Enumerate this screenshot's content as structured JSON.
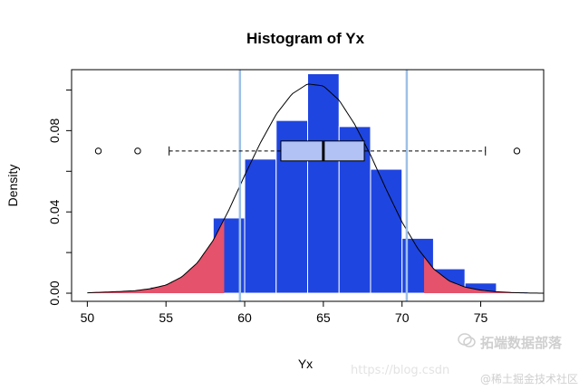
{
  "chart_data": {
    "type": "histogram",
    "title": "Histogram of Yx",
    "xlabel": "Yx",
    "ylabel": "Density",
    "xlim": [
      49,
      79
    ],
    "ylim": [
      -0.004,
      0.11
    ],
    "x_ticks": [
      50,
      55,
      60,
      65,
      70,
      75
    ],
    "y_ticks": [
      0.0,
      0.04,
      0.08
    ],
    "y_tick_labels": [
      "0.00",
      "0.04",
      "0.08"
    ],
    "bins": [
      {
        "x0": 52,
        "x1": 54,
        "density": 0.0002
      },
      {
        "x0": 54,
        "x1": 56,
        "density": 0.003
      },
      {
        "x0": 56,
        "x1": 58,
        "density": 0.008
      },
      {
        "x0": 58,
        "x1": 60,
        "density": 0.037
      },
      {
        "x0": 60,
        "x1": 62,
        "density": 0.066
      },
      {
        "x0": 62,
        "x1": 64,
        "density": 0.085
      },
      {
        "x0": 64,
        "x1": 66,
        "density": 0.108
      },
      {
        "x0": 66,
        "x1": 68,
        "density": 0.082
      },
      {
        "x0": 68,
        "x1": 70,
        "density": 0.061
      },
      {
        "x0": 70,
        "x1": 72,
        "density": 0.027
      },
      {
        "x0": 72,
        "x1": 74,
        "density": 0.012
      },
      {
        "x0": 74,
        "x1": 76,
        "density": 0.005
      },
      {
        "x0": 76,
        "x1": 78,
        "density": 0.0006
      }
    ],
    "density_curve": {
      "x": [
        50,
        51,
        52,
        53,
        54,
        55,
        56,
        57,
        58,
        59,
        60,
        61,
        62,
        63,
        64,
        65,
        66,
        67,
        68,
        69,
        70,
        71,
        72,
        73,
        74,
        75,
        76,
        77,
        78,
        79
      ],
      "y": [
        0.0002,
        0.0005,
        0.0008,
        0.0012,
        0.0022,
        0.004,
        0.008,
        0.015,
        0.026,
        0.041,
        0.058,
        0.074,
        0.088,
        0.098,
        0.103,
        0.102,
        0.095,
        0.083,
        0.068,
        0.051,
        0.035,
        0.022,
        0.012,
        0.006,
        0.003,
        0.0015,
        0.0007,
        0.0003,
        0.0001,
        0.0
      ]
    },
    "vertical_lines": [
      59.7,
      70.3
    ],
    "shaded_tails": {
      "lower_upto": 58.7,
      "upper_from": 71.4
    },
    "boxplot": {
      "y": 0.07,
      "whisker_low": 55.2,
      "q1": 62.3,
      "median": 65.0,
      "q3": 67.6,
      "whisker_high": 75.3,
      "outliers": [
        50.7,
        53.2,
        77.3
      ]
    },
    "colors": {
      "bars": "#1f45e0",
      "bar_border": "#ffffff",
      "tails": "#e4526b",
      "vlines": "#9ec0e8",
      "box_fill": "#b3c2f5",
      "curve": "#000000"
    },
    "grid": false
  },
  "watermarks": {
    "url": "https://blog.csdn",
    "brand": "拓端数据部落",
    "brand2": "@稀土掘金技术社区"
  }
}
